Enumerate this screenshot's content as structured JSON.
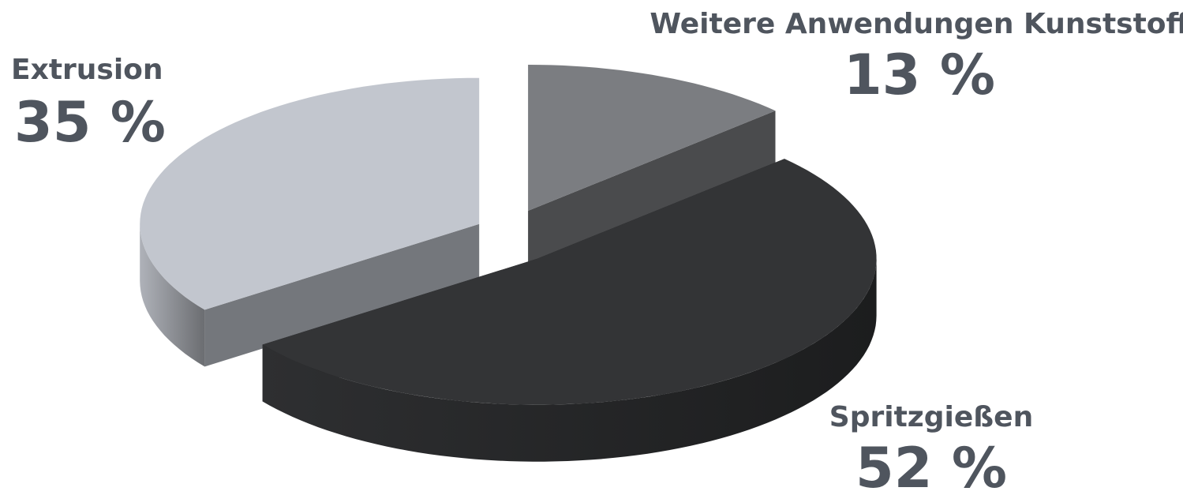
{
  "chart_data": {
    "type": "pie",
    "categories": [
      "Weitere Anwendungen Kunststoff",
      "Spritzgießen",
      "Extrusion"
    ],
    "values": [
      13,
      52,
      35
    ],
    "value_labels": [
      "13 %",
      "52 %",
      "35 %"
    ],
    "colors": [
      "#7b7d81",
      "#333436",
      "#c2c6ce"
    ]
  }
}
